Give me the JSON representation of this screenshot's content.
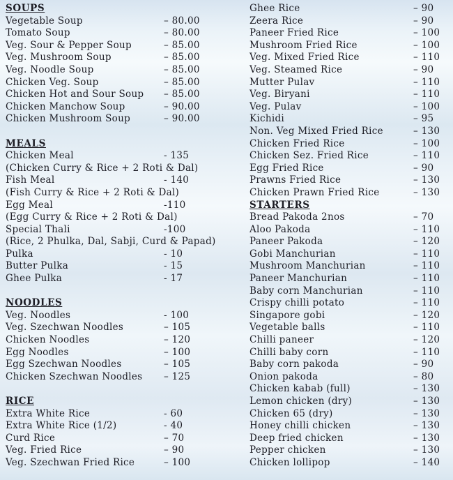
{
  "page": {
    "kind": "restaurant-menu-price-list",
    "text_color": "#1c1c24",
    "background_band_blue": "#d7e4f0",
    "background_band_white": "#f6fafc"
  },
  "menu": {
    "columns": [
      {
        "side": "left",
        "rows": [
          {
            "type": "header",
            "label": "SOUPS"
          },
          {
            "type": "item",
            "name": "Vegetable Soup",
            "price": "– 80.00"
          },
          {
            "type": "item",
            "name": "Tomato Soup",
            "price": "– 80.00"
          },
          {
            "type": "item",
            "name": "Veg. Sour & Pepper Soup",
            "price": "– 85.00"
          },
          {
            "type": "item",
            "name": "Veg. Mushroom Soup",
            "price": "– 85.00"
          },
          {
            "type": "item",
            "name": "Veg. Noodle Soup",
            "price": "– 85.00"
          },
          {
            "type": "item",
            "name": "Chicken Veg. Soup",
            "price": "– 85.00"
          },
          {
            "type": "item",
            "name": "Chicken Hot and Sour Soup",
            "price": "– 85.00"
          },
          {
            "type": "item",
            "name": "Chicken Manchow Soup",
            "price": "– 90.00"
          },
          {
            "type": "item",
            "name": "Chicken Mushroom Soup",
            "price": "– 90.00"
          },
          {
            "type": "gap"
          },
          {
            "type": "header",
            "label": "MEALS"
          },
          {
            "type": "item",
            "name": "Chicken Meal",
            "price": "- 135"
          },
          {
            "type": "note",
            "text": "(Chicken Curry & Rice + 2 Roti & Dal)"
          },
          {
            "type": "item",
            "name": "Fish Meal",
            "price": "- 140"
          },
          {
            "type": "note",
            "text": "(Fish Curry & Rice + 2 Roti & Dal)"
          },
          {
            "type": "item",
            "name": "Egg Meal",
            "price": "-110"
          },
          {
            "type": "note",
            "text": "(Egg Curry & Rice + 2 Roti & Dal)"
          },
          {
            "type": "item",
            "name": "Special Thali",
            "price": "-100"
          },
          {
            "type": "note",
            "text": "(Rice, 2 Phulka, Dal, Sabji, Curd & Papad)"
          },
          {
            "type": "item",
            "name": "Pulka",
            "price": "- 10"
          },
          {
            "type": "item",
            "name": "Butter Pulka",
            "price": "- 15"
          },
          {
            "type": "item",
            "name": "Ghee Pulka",
            "price": "- 17"
          },
          {
            "type": "gap"
          },
          {
            "type": "header",
            "label": "NOODLES"
          },
          {
            "type": "item",
            "name": "Veg. Noodles",
            "price": "- 100"
          },
          {
            "type": "item",
            "name": "Veg. Szechwan Noodles",
            "price": "– 105"
          },
          {
            "type": "item",
            "name": "Chicken Noodles",
            "price": "– 120"
          },
          {
            "type": "item",
            "name": "Egg Noodles",
            "price": "– 100"
          },
          {
            "type": "item",
            "name": "Egg Szechwan Noodles",
            "price": "– 105"
          },
          {
            "type": "item",
            "name": "Chicken Szechwan Noodles",
            "price": "– 125"
          },
          {
            "type": "gap"
          },
          {
            "type": "header",
            "label": "RICE"
          },
          {
            "type": "item",
            "name": "Extra White Rice",
            "price": "- 60"
          },
          {
            "type": "item",
            "name": "Extra White Rice (1/2)",
            "price": "- 40"
          },
          {
            "type": "item",
            "name": "Curd Rice",
            "price": "– 70"
          },
          {
            "type": "item",
            "name": "Veg. Fried Rice",
            "price": "– 90"
          },
          {
            "type": "item",
            "name": "Veg. Szechwan Fried Rice",
            "price": "– 100"
          }
        ]
      },
      {
        "side": "right",
        "rows": [
          {
            "type": "item",
            "name": "Ghee Rice",
            "price": "– 90"
          },
          {
            "type": "item",
            "name": "Zeera Rice",
            "price": "– 90"
          },
          {
            "type": "item",
            "name": "Paneer Fried Rice",
            "price": "– 100"
          },
          {
            "type": "item",
            "name": "Mushroom Fried Rice",
            "price": "– 100"
          },
          {
            "type": "item",
            "name": "Veg. Mixed Fried Rice",
            "price": "– 110"
          },
          {
            "type": "item",
            "name": "Veg. Steamed Rice",
            "price": "– 90"
          },
          {
            "type": "item",
            "name": "Mutter Pulav",
            "price": "– 110"
          },
          {
            "type": "item",
            "name": "Veg. Biryani",
            "price": "– 110"
          },
          {
            "type": "item",
            "name": "Veg. Pulav",
            "price": "– 100"
          },
          {
            "type": "item",
            "name": "Kichidi",
            "price": "– 95"
          },
          {
            "type": "item",
            "name": "Non. Veg Mixed Fried Rice",
            "price": "– 130"
          },
          {
            "type": "item",
            "name": "Chicken Fried Rice",
            "price": "– 100"
          },
          {
            "type": "item",
            "name": "Chicken Sez. Fried Rice",
            "price": "– 110"
          },
          {
            "type": "item",
            "name": "Egg Fried Rice",
            "price": "– 90"
          },
          {
            "type": "item",
            "name": "Prawns Fried Rice",
            "price": "– 130"
          },
          {
            "type": "item",
            "name": "Chicken Prawn Fried Rice",
            "price": "– 130"
          },
          {
            "type": "header",
            "label": "STARTERS"
          },
          {
            "type": "item",
            "name": "Bread Pakoda 2nos",
            "price": "– 70"
          },
          {
            "type": "item",
            "name": "Aloo Pakoda",
            "price": "– 110"
          },
          {
            "type": "item",
            "name": "Paneer Pakoda",
            "price": "– 120"
          },
          {
            "type": "item",
            "name": "Gobi Manchurian",
            "price": "– 110"
          },
          {
            "type": "item",
            "name": "Mushroom Manchurian",
            "price": "– 110"
          },
          {
            "type": "item",
            "name": "Paneer Manchurian",
            "price": "– 110"
          },
          {
            "type": "item",
            "name": "Baby corn Manchurian",
            "price": "– 110"
          },
          {
            "type": "item",
            "name": "Crispy chilli potato",
            "price": "– 110"
          },
          {
            "type": "item",
            "name": "Singapore gobi",
            "price": "– 120"
          },
          {
            "type": "item",
            "name": "Vegetable balls",
            "price": "– 110"
          },
          {
            "type": "item",
            "name": "Chilli paneer",
            "price": "– 120"
          },
          {
            "type": "item",
            "name": "Chilli baby corn",
            "price": "– 110"
          },
          {
            "type": "item",
            "name": "Baby corn pakoda",
            "price": "– 90"
          },
          {
            "type": "item",
            "name": "Onion pakoda",
            "price": "– 80"
          },
          {
            "type": "item",
            "name": "Chicken kabab (full)",
            "price": "– 130"
          },
          {
            "type": "item",
            "name": "Lemon chicken (dry)",
            "price": "– 130"
          },
          {
            "type": "item",
            "name": "Chicken 65 (dry)",
            "price": "– 130"
          },
          {
            "type": "item",
            "name": "Honey chilli chicken",
            "price": "– 130"
          },
          {
            "type": "item",
            "name": "Deep fried chicken",
            "price": "– 130"
          },
          {
            "type": "item",
            "name": "Pepper chicken",
            "price": "– 130"
          },
          {
            "type": "item",
            "name": "Chicken lollipop",
            "price": "– 140"
          }
        ]
      }
    ]
  }
}
